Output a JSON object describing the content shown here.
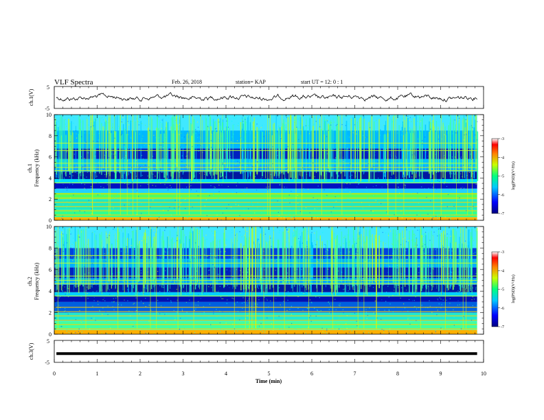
{
  "header": {
    "title": "VLF Spectra",
    "date": "Feb. 26, 2018",
    "station": "station= KAP",
    "start": "start  UT =   12: 0  : 1"
  },
  "chart_data": [
    {
      "type": "line",
      "panel": "waveform-ch1",
      "ylabel": "ch.1(V)",
      "ylim": [
        -5,
        5
      ],
      "yticks": [
        "5",
        "-5"
      ],
      "xlim": [
        0,
        10
      ],
      "series": [
        {
          "values": []
        }
      ]
    },
    {
      "type": "heatmap",
      "panel": "spectrogram-ch1",
      "ylabel": "ch.1\nFrequency  (kHz)",
      "ylim": [
        0,
        10
      ],
      "yticks": [
        "0",
        "2",
        "4",
        "6",
        "8",
        "10"
      ],
      "xlim": [
        0,
        10
      ],
      "colorbar": {
        "label": "log(PSD)(V²/Hz)",
        "ticks": [
          "-3",
          "-4",
          "-5",
          "-6",
          "-7"
        ],
        "range": [
          -7,
          -3
        ]
      }
    },
    {
      "type": "heatmap",
      "panel": "spectrogram-ch2",
      "ylabel": "ch.2\nFrequency  (kHz)",
      "ylim": [
        0,
        10
      ],
      "yticks": [
        "0",
        "2",
        "4",
        "6",
        "8",
        "10"
      ],
      "xlim": [
        0,
        10
      ],
      "colorbar": {
        "label": "log(PSD)(V²/Hz)",
        "ticks": [
          "-3",
          "-4",
          "-5",
          "-6",
          "-7"
        ],
        "range": [
          -7,
          -3
        ]
      }
    },
    {
      "type": "line",
      "panel": "waveform-ch3",
      "ylabel": "ch.3(V)",
      "ylim": [
        -5,
        5
      ],
      "yticks": [
        "5",
        "-5"
      ],
      "xlim": [
        0,
        10
      ],
      "series": [
        {
          "values": [
            -1,
            -1
          ]
        }
      ]
    }
  ],
  "xaxis": {
    "label": "Time  (min)",
    "ticks": [
      "0",
      "1",
      "2",
      "3",
      "4",
      "5",
      "6",
      "7",
      "8",
      "9",
      "10"
    ]
  }
}
